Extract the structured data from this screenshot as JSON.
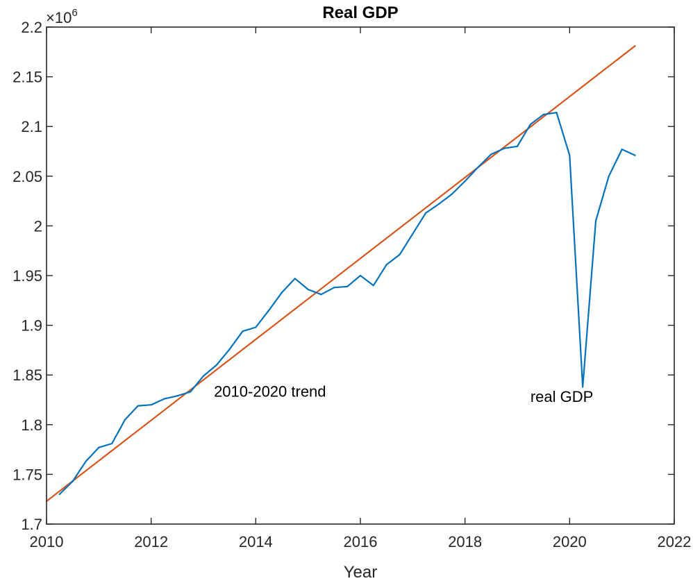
{
  "chart_data": {
    "type": "line",
    "title": "Real GDP",
    "xlabel": "Year",
    "ylabel": "",
    "xlim": [
      2010,
      2022
    ],
    "ylim": [
      1700000,
      2200000
    ],
    "x_ticks": [
      "2010",
      "2012",
      "2014",
      "2016",
      "2018",
      "2020",
      "2022"
    ],
    "y_ticks": [
      "1.7",
      "1.75",
      "1.8",
      "1.85",
      "1.9",
      "1.95",
      "2",
      "2.05",
      "2.1",
      "2.15",
      "2.2"
    ],
    "y_exponent": {
      "base": "×10",
      "power": "6"
    },
    "grid": false,
    "colors": {
      "real": "#0072BD",
      "trend": "#D95319",
      "axes": "#262626"
    },
    "series": [
      {
        "key": "trend",
        "x": [
          2010,
          2021.25
        ],
        "y": [
          1723000,
          2181000
        ]
      },
      {
        "key": "real",
        "x": [
          2010.25,
          2010.5,
          2010.75,
          2011,
          2011.25,
          2011.5,
          2011.75,
          2012,
          2012.25,
          2012.5,
          2012.75,
          2013,
          2013.25,
          2013.5,
          2013.75,
          2014,
          2014.25,
          2014.5,
          2014.75,
          2015,
          2015.25,
          2015.5,
          2015.75,
          2016,
          2016.25,
          2016.5,
          2016.75,
          2017,
          2017.25,
          2017.5,
          2017.75,
          2018,
          2018.25,
          2018.5,
          2018.75,
          2019,
          2019.25,
          2019.5,
          2019.75,
          2020,
          2020.25,
          2020.5,
          2020.75,
          2021,
          2021.25
        ],
        "y": [
          1730000,
          1743000,
          1763000,
          1777000,
          1781000,
          1805000,
          1819000,
          1820000,
          1826000,
          1829000,
          1833000,
          1849000,
          1860000,
          1876000,
          1894000,
          1898000,
          1915000,
          1933000,
          1947000,
          1936000,
          1931000,
          1938000,
          1939000,
          1950000,
          1940000,
          1961000,
          1971000,
          1992000,
          2013000,
          2022000,
          2032000,
          2045000,
          2059000,
          2072000,
          2078000,
          2080000,
          2102000,
          2112000,
          2114000,
          2071000,
          1838000,
          2005000,
          2050000,
          2077000,
          2071000
        ]
      }
    ],
    "annotations": [
      {
        "text": "2010-2020 trend",
        "x": 2013.2,
        "y": 1828000
      },
      {
        "text": "real GDP",
        "x": 2019.25,
        "y": 1823000
      }
    ]
  }
}
